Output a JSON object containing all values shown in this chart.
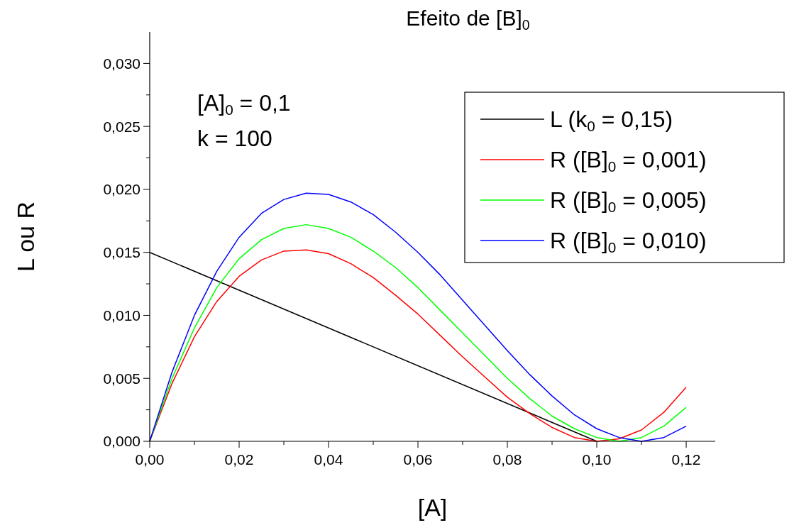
{
  "chart_data": {
    "type": "line",
    "title": "Efeito de [B]$_{0}$",
    "xlabel": "[A]",
    "ylabel": "L ou R",
    "annotations": [
      "[A]$_{0}$ = 0,1",
      "k = 100"
    ],
    "x": [
      0,
      0.005,
      0.01,
      0.015,
      0.02,
      0.025,
      0.03,
      0.035,
      0.04,
      0.045,
      0.05,
      0.055,
      0.06,
      0.065,
      0.07,
      0.075,
      0.08,
      0.085,
      0.09,
      0.095,
      0.1,
      0.105,
      0.11,
      0.115,
      0.12
    ],
    "series": [
      {
        "name": "L (k$_{0}$ = 0,15)",
        "color": "#000000",
        "x": [
          0,
          0.1
        ],
        "values": [
          0.015,
          0
        ]
      },
      {
        "name": "R ([B]$_{0}$ = 0,001)",
        "color": "#ff0000",
        "values": [
          0,
          0.0046,
          0.0083,
          0.0111,
          0.0131,
          0.0144,
          0.0151,
          0.0152,
          0.0149,
          0.0141,
          0.013,
          0.0116,
          0.0101,
          0.0084,
          0.0067,
          0.0051,
          0.0035,
          0.0022,
          0.0011,
          0.0003,
          0.0,
          0.0002,
          0.0009,
          0.0023,
          0.0043
        ]
      },
      {
        "name": "R ([B]$_{0}$ = 0,005)",
        "color": "#00ff00",
        "values": [
          0,
          0.005,
          0.009,
          0.0122,
          0.0145,
          0.016,
          0.0169,
          0.0172,
          0.0169,
          0.0162,
          0.0151,
          0.0138,
          0.0122,
          0.0104,
          0.0086,
          0.0068,
          0.005,
          0.0034,
          0.002,
          0.001,
          0.0003,
          0.0,
          0.0003,
          0.0012,
          0.0027
        ]
      },
      {
        "name": "R ([B]$_{0}$ = 0,010)",
        "color": "#0000ff",
        "values": [
          0,
          0.0055,
          0.01,
          0.0135,
          0.0162,
          0.0181,
          0.0192,
          0.0197,
          0.0196,
          0.019,
          0.018,
          0.0166,
          0.015,
          0.0132,
          0.0112,
          0.0092,
          0.0072,
          0.0053,
          0.0036,
          0.0021,
          0.001,
          0.0003,
          0.0,
          0.0003,
          0.0012
        ]
      }
    ],
    "xlim": [
      0,
      0.1265
    ],
    "ylim": [
      0,
      0.0325
    ],
    "xticks": [
      {
        "value": 0,
        "label": "0,00"
      },
      {
        "value": 0.01,
        "label": null
      },
      {
        "value": 0.02,
        "label": "0,02"
      },
      {
        "value": 0.03,
        "label": null
      },
      {
        "value": 0.04,
        "label": "0,04"
      },
      {
        "value": 0.05,
        "label": null
      },
      {
        "value": 0.06,
        "label": "0,06"
      },
      {
        "value": 0.07,
        "label": null
      },
      {
        "value": 0.08,
        "label": "0,08"
      },
      {
        "value": 0.09,
        "label": null
      },
      {
        "value": 0.1,
        "label": "0,10"
      },
      {
        "value": 0.11,
        "label": null
      },
      {
        "value": 0.12,
        "label": "0,12"
      }
    ],
    "yticks": [
      {
        "value": 0,
        "label": "0,000"
      },
      {
        "value": 0.0025,
        "label": null
      },
      {
        "value": 0.005,
        "label": "0,005"
      },
      {
        "value": 0.0075,
        "label": null
      },
      {
        "value": 0.01,
        "label": "0,010"
      },
      {
        "value": 0.0125,
        "label": null
      },
      {
        "value": 0.015,
        "label": "0,015"
      },
      {
        "value": 0.0175,
        "label": null
      },
      {
        "value": 0.02,
        "label": "0,020"
      },
      {
        "value": 0.0225,
        "label": null
      },
      {
        "value": 0.025,
        "label": "0,025"
      },
      {
        "value": 0.0275,
        "label": null
      },
      {
        "value": 0.03,
        "label": "0,030"
      }
    ],
    "legend": "top right",
    "grid": false,
    "marker": "none",
    "line_style": "solid"
  }
}
